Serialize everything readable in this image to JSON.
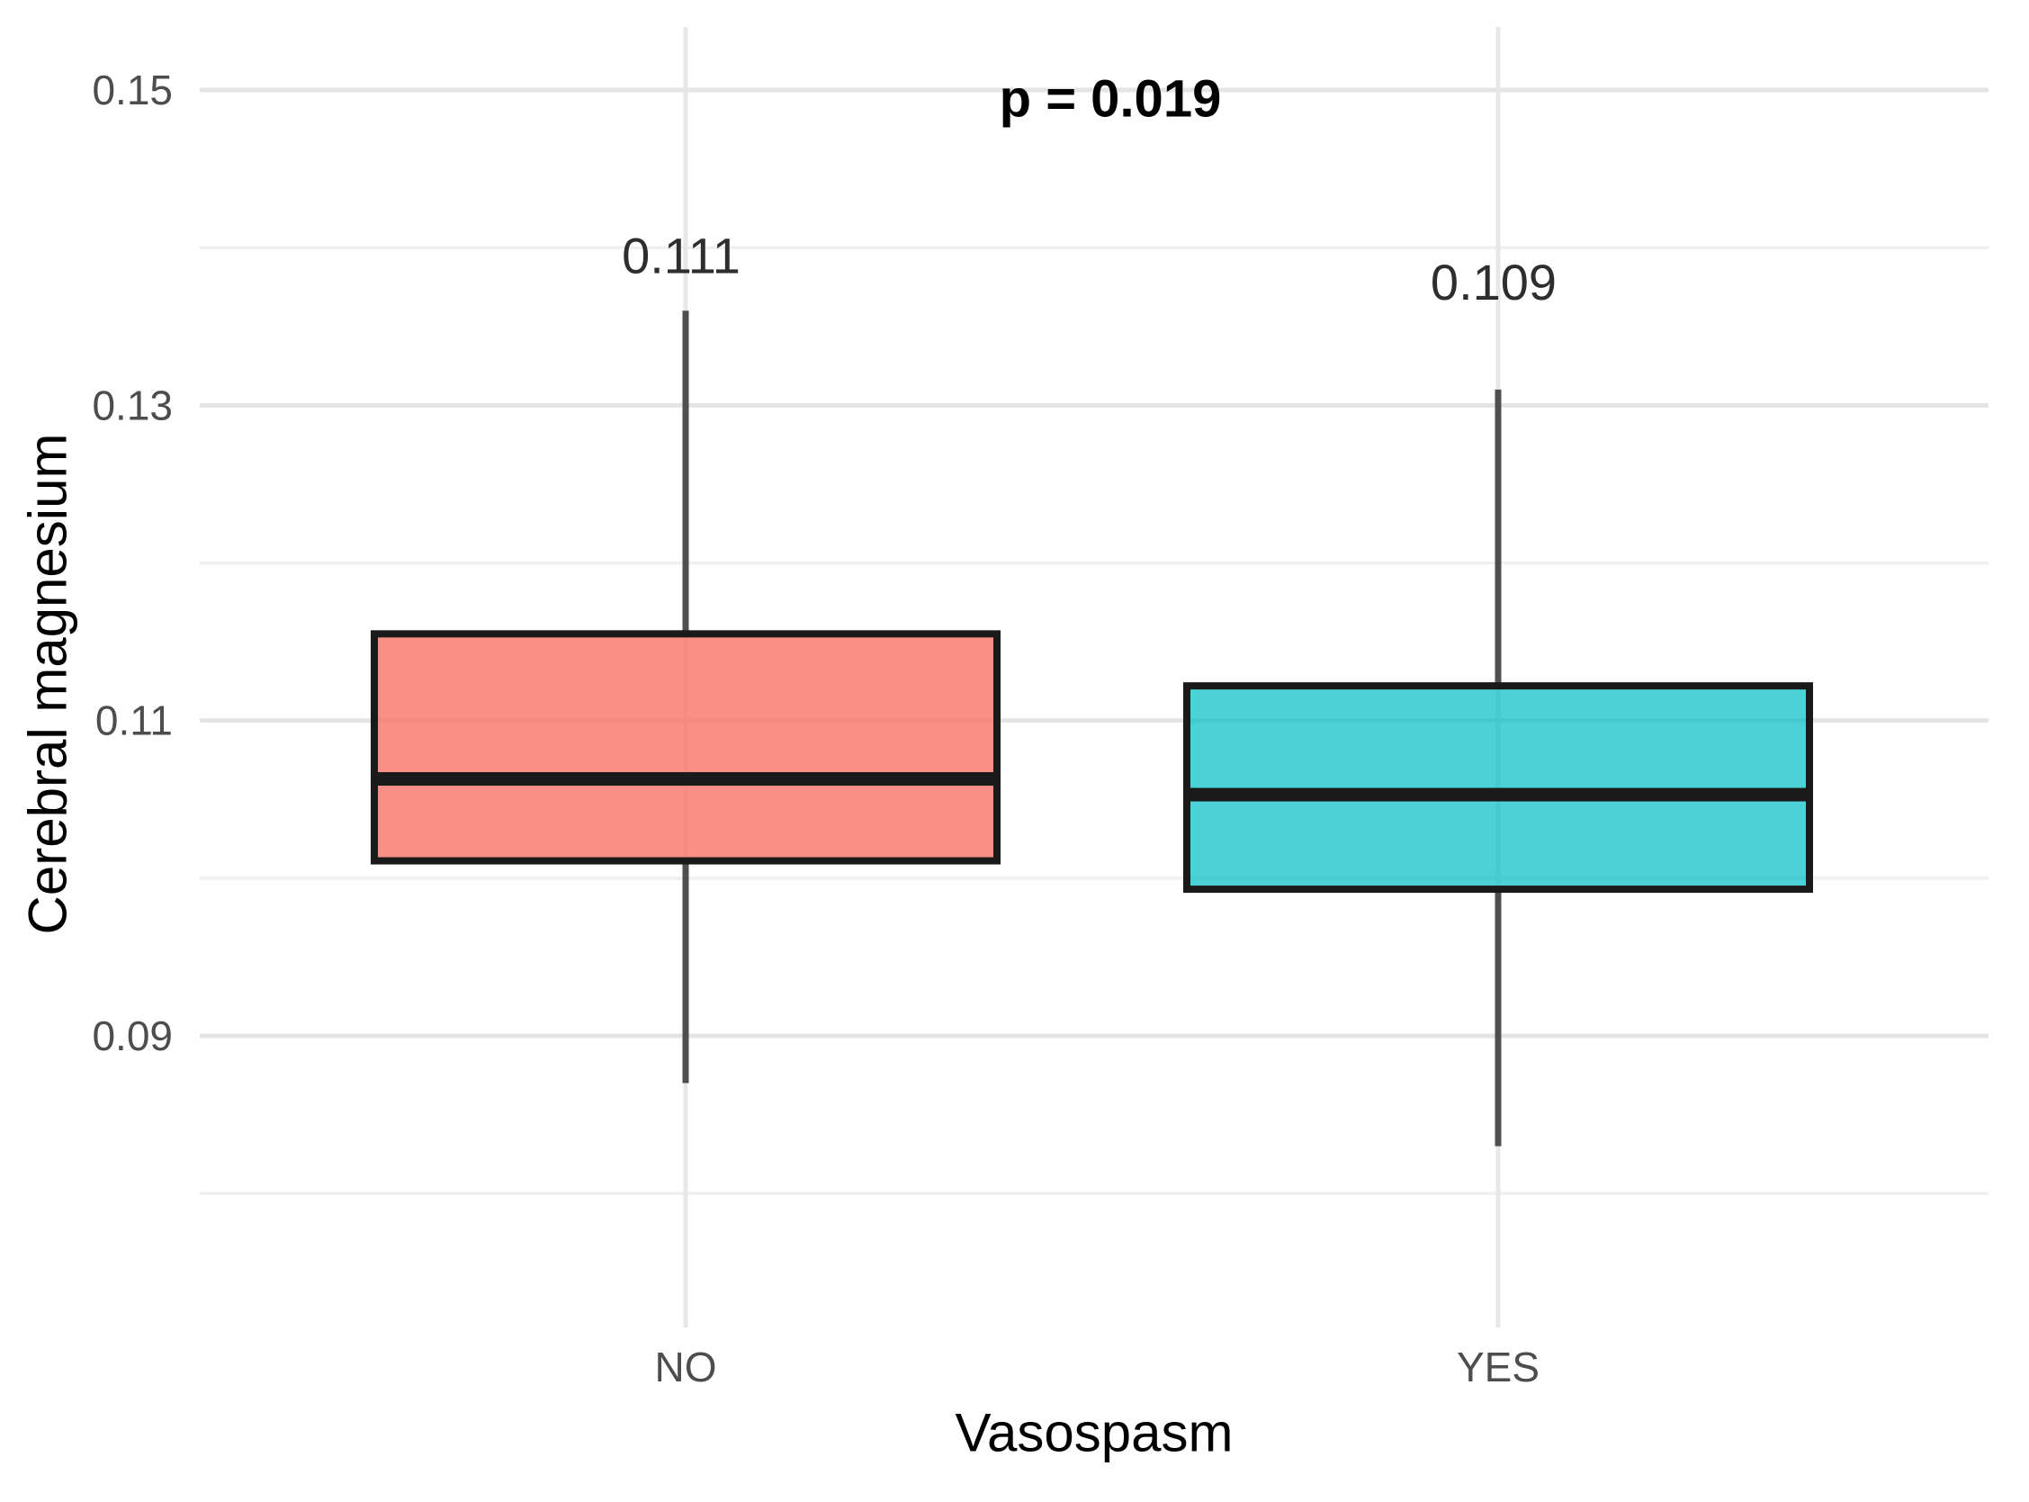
{
  "chart_data": {
    "type": "boxplot",
    "title": "",
    "xlabel": "Vasospasm",
    "ylabel": "Cerebral magnesium",
    "categories": [
      "NO",
      "YES"
    ],
    "y_tick_labels": [
      "0.15",
      "0.13",
      "0.11",
      "0.09"
    ],
    "y_ticks": [
      0.15,
      0.13,
      0.11,
      0.09
    ],
    "y_minor_ticks": [
      0.14,
      0.12,
      0.1,
      0.08
    ],
    "ylim": [
      0.0715,
      0.154
    ],
    "grid": true,
    "legend_position": "none",
    "annotation": {
      "text": "p = 0.019"
    },
    "series": [
      {
        "name": "NO",
        "whisker_low": 0.087,
        "q1": 0.1011,
        "median": 0.1063,
        "q3": 0.1155,
        "whisker_high": 0.136,
        "mean_label": "0.111",
        "label_y": 0.1395,
        "fill_color": "#F8766D",
        "fill_opacity": 0.82
      },
      {
        "name": "YES",
        "whisker_low": 0.083,
        "q1": 0.0993,
        "median": 0.1053,
        "q3": 0.1122,
        "whisker_high": 0.131,
        "mean_label": "0.109",
        "label_y": 0.1378,
        "fill_color": "#00BFC4",
        "fill_opacity": 0.7
      }
    ],
    "colors": {
      "box_border": "#1A1A1A",
      "median_line": "#1A1A1A",
      "whisker": "#4F4F4F",
      "grid_major": "#E4E4E4",
      "grid_minor": "#EFEFEF",
      "tick_text": "#4D4D4D",
      "title_text": "#000000",
      "background": "#FFFFFF"
    }
  }
}
